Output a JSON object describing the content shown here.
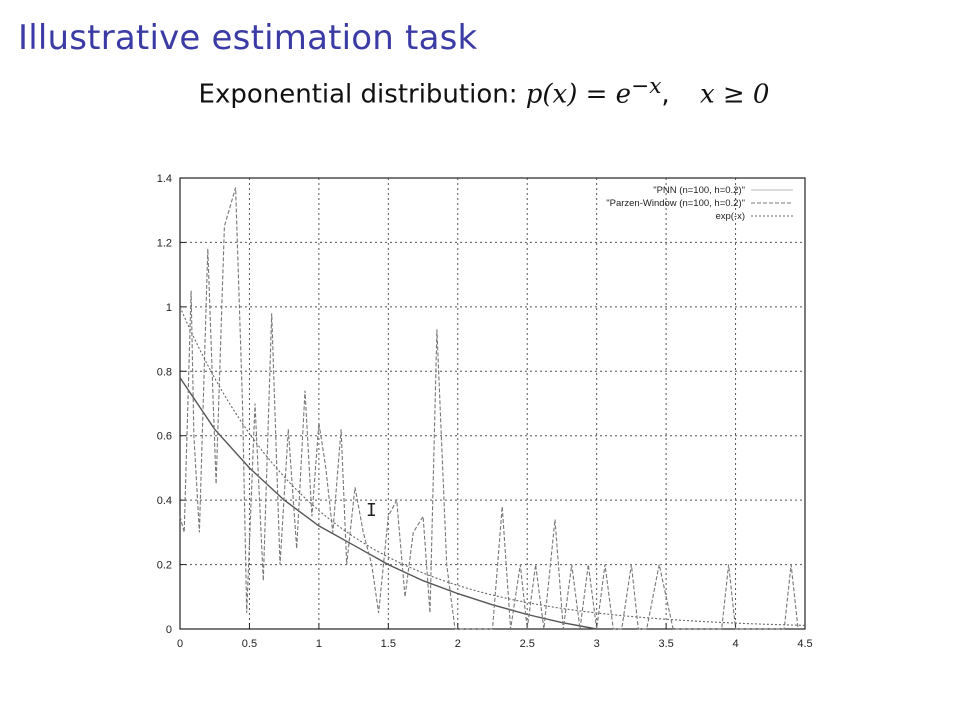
{
  "slide": {
    "title": "Illustrative estimation task",
    "subtitle_prefix": "Exponential distribution:",
    "subtitle_formula": "p(x) = e",
    "subtitle_exponent": "−x",
    "subtitle_comma": ",",
    "subtitle_condition": "x ≥ 0"
  },
  "cursor_icon": "text-cursor-icon",
  "chart_data": {
    "type": "line",
    "xlim": [
      0,
      4.5
    ],
    "ylim": [
      0,
      1.4
    ],
    "x_ticks": [
      0,
      0.5,
      1,
      1.5,
      2,
      2.5,
      3,
      3.5,
      4,
      4.5
    ],
    "x_tick_labels": [
      "0",
      "0.5",
      "1",
      "1.5",
      "2",
      "2.5",
      "3",
      "3.5",
      "4",
      "4.5"
    ],
    "y_ticks": [
      0,
      0.2,
      0.4,
      0.6,
      0.8,
      1,
      1.2,
      1.4
    ],
    "y_tick_labels": [
      "0",
      "0.2",
      "0.4",
      "0.6",
      "0.8",
      "1",
      "1.2",
      "1.4"
    ],
    "grid": true,
    "legend_position": "top-right",
    "series": [
      {
        "name": "\"PNN (n=100, h=0.2)\"",
        "style": "solid",
        "color": "#555555",
        "x": [
          0,
          0.25,
          0.5,
          0.75,
          1,
          1.25,
          1.5,
          1.75,
          2,
          2.25,
          2.5,
          2.75,
          3
        ],
        "y": [
          0.78,
          0.62,
          0.5,
          0.4,
          0.32,
          0.26,
          0.2,
          0.15,
          0.11,
          0.075,
          0.045,
          0.02,
          0
        ]
      },
      {
        "name": "\"Parzen-Window (n=100, h=0.2)\"",
        "style": "dashed",
        "color": "#777777",
        "x": [
          0,
          0.03,
          0.08,
          0.1,
          0.14,
          0.2,
          0.26,
          0.32,
          0.4,
          0.45,
          0.48,
          0.54,
          0.6,
          0.66,
          0.72,
          0.78,
          0.84,
          0.9,
          0.95,
          1.0,
          1.05,
          1.1,
          1.16,
          1.2,
          1.26,
          1.32,
          1.38,
          1.43,
          1.5,
          1.56,
          1.62,
          1.68,
          1.75,
          1.8,
          1.85,
          1.92,
          1.98,
          2.05,
          2.15,
          2.25,
          2.32,
          2.38,
          2.45,
          2.5,
          2.56,
          2.62,
          2.7,
          2.76,
          2.82,
          2.88,
          2.94,
          3.0,
          3.06,
          3.12,
          3.18,
          3.25,
          3.3,
          3.36,
          3.45,
          3.55,
          3.65,
          3.7,
          3.8,
          3.9,
          3.95,
          4.0,
          4.1,
          4.25,
          4.35,
          4.4,
          4.45
        ],
        "y": [
          0.35,
          0.3,
          1.05,
          0.6,
          0.3,
          1.18,
          0.45,
          1.25,
          1.37,
          0.7,
          0.05,
          0.7,
          0.15,
          0.98,
          0.2,
          0.62,
          0.25,
          0.74,
          0.35,
          0.64,
          0.5,
          0.3,
          0.62,
          0.2,
          0.44,
          0.3,
          0.2,
          0.05,
          0.35,
          0.4,
          0.1,
          0.3,
          0.35,
          0.05,
          0.93,
          0.2,
          0.0,
          0.0,
          0.0,
          0.0,
          0.38,
          0.0,
          0.2,
          0.0,
          0.2,
          0.0,
          0.34,
          0.0,
          0.2,
          0.0,
          0.2,
          0.0,
          0.2,
          0.0,
          0.0,
          0.2,
          0.0,
          0.0,
          0.2,
          0.0,
          0.0,
          0.0,
          0.0,
          0.0,
          0.2,
          0.0,
          0.0,
          0.0,
          0.0,
          0.2,
          0.0
        ]
      },
      {
        "name": "exp(-x)",
        "style": "dotted",
        "color": "#666666",
        "function": "exp(-x)",
        "x": [
          0,
          0.25,
          0.5,
          0.75,
          1,
          1.25,
          1.5,
          1.75,
          2,
          2.5,
          3,
          3.5,
          4,
          4.5
        ],
        "y": [
          1,
          0.779,
          0.607,
          0.472,
          0.368,
          0.287,
          0.223,
          0.174,
          0.135,
          0.082,
          0.05,
          0.03,
          0.018,
          0.011
        ]
      }
    ]
  }
}
